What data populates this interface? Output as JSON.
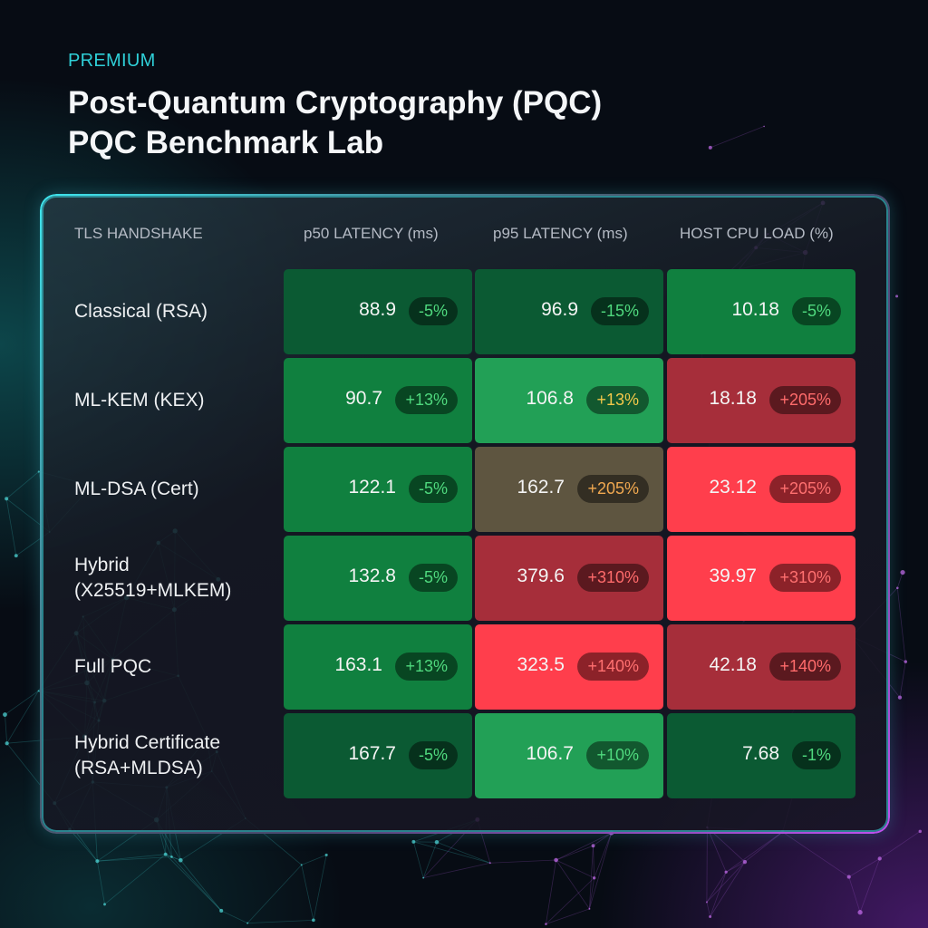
{
  "header": {
    "eyebrow": "PREMIUM",
    "title_line1": "Post-Quantum Cryptography (PQC)",
    "title_line2": "PQC Benchmark Lab"
  },
  "colors": {
    "accent": "#2fd0d8",
    "dark_green": "#0b5a33",
    "green": "#10803f",
    "light_green": "#22a056",
    "neutral_brown": "#5e5540",
    "dark_red": "#a62e3a",
    "bright_red": "#ff3e4c"
  },
  "chart_data": {
    "type": "heatmap",
    "row_header": "TLS HANDSHAKE",
    "columns": [
      "p50 LATENCY (ms)",
      "p95 LATENCY (ms)",
      "HOST CPU LOAD (%)"
    ],
    "rows": [
      {
        "label": [
          "Classical (RSA)"
        ],
        "cells": [
          {
            "value": "88.9",
            "delta": "-5%",
            "fill": "#0b5a33",
            "delta_color": "#4fd97e"
          },
          {
            "value": "96.9",
            "delta": "-15%",
            "fill": "#0b5a33",
            "delta_color": "#4fd97e"
          },
          {
            "value": "10.18",
            "delta": "-5%",
            "fill": "#10803f",
            "delta_color": "#4fd97e"
          }
        ]
      },
      {
        "label": [
          "ML-KEM (KEX)"
        ],
        "cells": [
          {
            "value": "90.7",
            "delta": "+13%",
            "fill": "#10803f",
            "delta_color": "#4fd97e"
          },
          {
            "value": "106.8",
            "delta": "+13%",
            "fill": "#22a056",
            "delta_color": "#f2c84a"
          },
          {
            "value": "18.18",
            "delta": "+205%",
            "fill": "#a62e3a",
            "delta_color": "#ff6b6b"
          }
        ]
      },
      {
        "label": [
          "ML-DSA (Cert)"
        ],
        "cells": [
          {
            "value": "122.1",
            "delta": "-5%",
            "fill": "#10803f",
            "delta_color": "#4fd97e"
          },
          {
            "value": "162.7",
            "delta": "+205%",
            "fill": "#5e5540",
            "delta_color": "#f0a850"
          },
          {
            "value": "23.12",
            "delta": "+205%",
            "fill": "#ff3e4c",
            "delta_color": "#ff7070"
          }
        ]
      },
      {
        "label": [
          "Hybrid",
          "(X25519+MLKEM)"
        ],
        "cells": [
          {
            "value": "132.8",
            "delta": "-5%",
            "fill": "#10803f",
            "delta_color": "#4fd97e"
          },
          {
            "value": "379.6",
            "delta": "+310%",
            "fill": "#a62e3a",
            "delta_color": "#ff6b6b"
          },
          {
            "value": "39.97",
            "delta": "+310%",
            "fill": "#ff3e4c",
            "delta_color": "#ff7070"
          }
        ]
      },
      {
        "label": [
          "Full PQC"
        ],
        "cells": [
          {
            "value": "163.1",
            "delta": "+13%",
            "fill": "#10803f",
            "delta_color": "#4fd97e"
          },
          {
            "value": "323.5",
            "delta": "+140%",
            "fill": "#ff3e4c",
            "delta_color": "#ff7070"
          },
          {
            "value": "42.18",
            "delta": "+140%",
            "fill": "#a62e3a",
            "delta_color": "#ff6b6b"
          }
        ]
      },
      {
        "label": [
          "Hybrid Certificate",
          "(RSA+MLDSA)"
        ],
        "cells": [
          {
            "value": "167.7",
            "delta": "-5%",
            "fill": "#0b5a33",
            "delta_color": "#4fd97e"
          },
          {
            "value": "106.7",
            "delta": "+10%",
            "fill": "#22a056",
            "delta_color": "#4fd97e"
          },
          {
            "value": "7.68",
            "delta": "-1%",
            "fill": "#0b5a33",
            "delta_color": "#4fd97e"
          }
        ]
      }
    ]
  }
}
